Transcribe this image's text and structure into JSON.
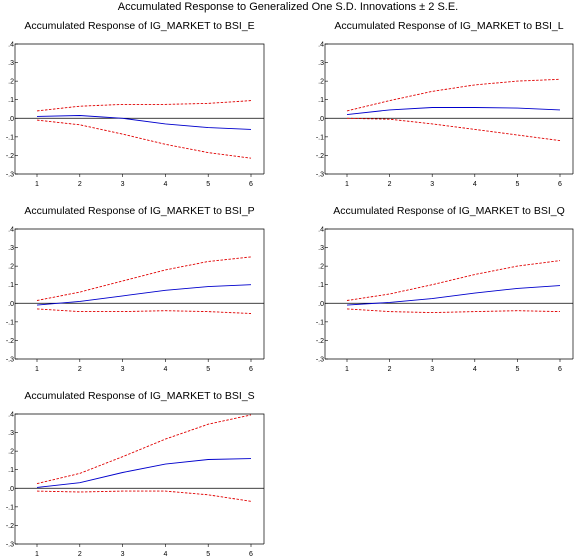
{
  "title": "Accumulated Response to Generalized One S.D. Innovations ± 2 S.E.",
  "colors": {
    "response": "#0000cc",
    "band": "#e00000",
    "axis": "#000000"
  },
  "chart_data": [
    {
      "type": "line",
      "title": "Accumulated Response of IG_MARKET to BSI_E",
      "x": [
        1,
        2,
        3,
        4,
        5,
        6
      ],
      "ylim": [
        -0.3,
        0.4
      ],
      "yticks": [
        ".4",
        ".3",
        ".2",
        ".1",
        ".0",
        "-.1",
        "-.2",
        "-.3"
      ],
      "series": [
        {
          "role": "response",
          "values": [
            0.01,
            0.015,
            0.0,
            -0.03,
            -0.05,
            -0.06
          ]
        },
        {
          "role": "upper",
          "values": [
            0.04,
            0.065,
            0.075,
            0.075,
            0.08,
            0.095
          ]
        },
        {
          "role": "lower",
          "values": [
            -0.01,
            -0.035,
            -0.085,
            -0.14,
            -0.185,
            -0.215
          ]
        }
      ]
    },
    {
      "type": "line",
      "title": "Accumulated Response of IG_MARKET to BSI_L",
      "x": [
        1,
        2,
        3,
        4,
        5,
        6
      ],
      "ylim": [
        -0.3,
        0.4
      ],
      "yticks": [
        ".4",
        ".3",
        ".2",
        ".1",
        ".0",
        "-.1",
        "-.2",
        "-.3"
      ],
      "series": [
        {
          "role": "response",
          "values": [
            0.02,
            0.045,
            0.058,
            0.058,
            0.055,
            0.045
          ]
        },
        {
          "role": "upper",
          "values": [
            0.04,
            0.095,
            0.145,
            0.18,
            0.2,
            0.21
          ]
        },
        {
          "role": "lower",
          "values": [
            0.0,
            -0.005,
            -0.03,
            -0.06,
            -0.09,
            -0.12
          ]
        }
      ]
    },
    {
      "type": "line",
      "title": "Accumulated Response of IG_MARKET to BSI_P",
      "x": [
        1,
        2,
        3,
        4,
        5,
        6
      ],
      "ylim": [
        -0.3,
        0.4
      ],
      "yticks": [
        ".4",
        ".3",
        ".2",
        ".1",
        ".0",
        "-.1",
        "-.2",
        "-.3"
      ],
      "series": [
        {
          "role": "response",
          "values": [
            -0.01,
            0.01,
            0.04,
            0.07,
            0.09,
            0.1
          ]
        },
        {
          "role": "upper",
          "values": [
            0.015,
            0.06,
            0.12,
            0.18,
            0.225,
            0.25
          ]
        },
        {
          "role": "lower",
          "values": [
            -0.03,
            -0.045,
            -0.045,
            -0.04,
            -0.045,
            -0.055
          ]
        }
      ]
    },
    {
      "type": "line",
      "title": "Accumulated Response of IG_MARKET to BSI_Q",
      "x": [
        1,
        2,
        3,
        4,
        5,
        6
      ],
      "ylim": [
        -0.3,
        0.4
      ],
      "yticks": [
        ".4",
        ".3",
        ".2",
        ".1",
        ".0",
        "-.1",
        "-.2",
        "-.3"
      ],
      "series": [
        {
          "role": "response",
          "values": [
            -0.01,
            0.005,
            0.025,
            0.055,
            0.08,
            0.095
          ]
        },
        {
          "role": "upper",
          "values": [
            0.015,
            0.05,
            0.1,
            0.155,
            0.2,
            0.23
          ]
        },
        {
          "role": "lower",
          "values": [
            -0.03,
            -0.045,
            -0.05,
            -0.045,
            -0.04,
            -0.045
          ]
        }
      ]
    },
    {
      "type": "line",
      "title": "Accumulated Response of IG_MARKET to BSI_S",
      "x": [
        1,
        2,
        3,
        4,
        5,
        6
      ],
      "ylim": [
        -0.3,
        0.4
      ],
      "yticks": [
        ".4",
        ".3",
        ".2",
        ".1",
        ".0",
        "-.1",
        "-.2",
        "-.3"
      ],
      "series": [
        {
          "role": "response",
          "values": [
            0.005,
            0.03,
            0.085,
            0.13,
            0.155,
            0.16
          ]
        },
        {
          "role": "upper",
          "values": [
            0.025,
            0.08,
            0.17,
            0.265,
            0.345,
            0.395
          ]
        },
        {
          "role": "lower",
          "values": [
            -0.015,
            -0.02,
            -0.015,
            -0.015,
            -0.035,
            -0.07
          ]
        }
      ]
    }
  ]
}
